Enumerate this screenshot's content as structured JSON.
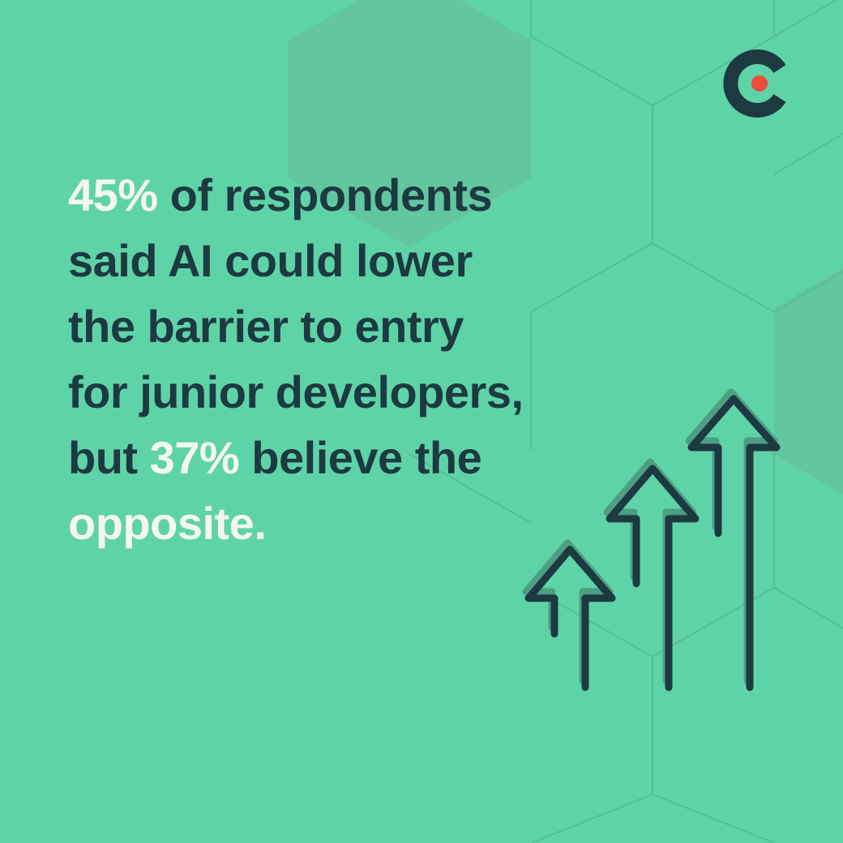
{
  "statement": {
    "lines": [
      [
        {
          "text": "45%",
          "highlight": true
        },
        {
          "text": " of respondents",
          "highlight": false
        }
      ],
      [
        {
          "text": "said AI could lower",
          "highlight": false
        }
      ],
      [
        {
          "text": "the barrier to entry",
          "highlight": false
        }
      ],
      [
        {
          "text": "for junior developers,",
          "highlight": false
        }
      ],
      [
        {
          "text": "but ",
          "highlight": false
        },
        {
          "text": "37%",
          "highlight": true
        },
        {
          "text": " believe the",
          "highlight": false
        }
      ],
      [
        {
          "text": "opposite.",
          "highlight": true
        }
      ]
    ]
  }
}
